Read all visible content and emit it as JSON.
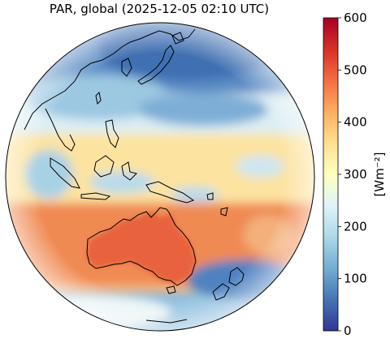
{
  "title": "PAR, global (2025-12-05 02:10 UTC)",
  "colorbar": {
    "label": "[Wm⁻²]",
    "min": 0,
    "max": 600,
    "ticks": [
      "0",
      "100",
      "200",
      "300",
      "400",
      "500",
      "600"
    ],
    "colors": [
      "#313695",
      "#4575b4",
      "#74add1",
      "#abd9e9",
      "#e0f3f8",
      "#ffffbf",
      "#fee090",
      "#fdae61",
      "#f46d43",
      "#d73027",
      "#a50026"
    ]
  },
  "map": {
    "projection": "geostationary full disk",
    "regions": [
      "Japan",
      "East Asia",
      "Philippines",
      "Indonesia",
      "New Guinea",
      "Australia",
      "New Zealand"
    ]
  }
}
